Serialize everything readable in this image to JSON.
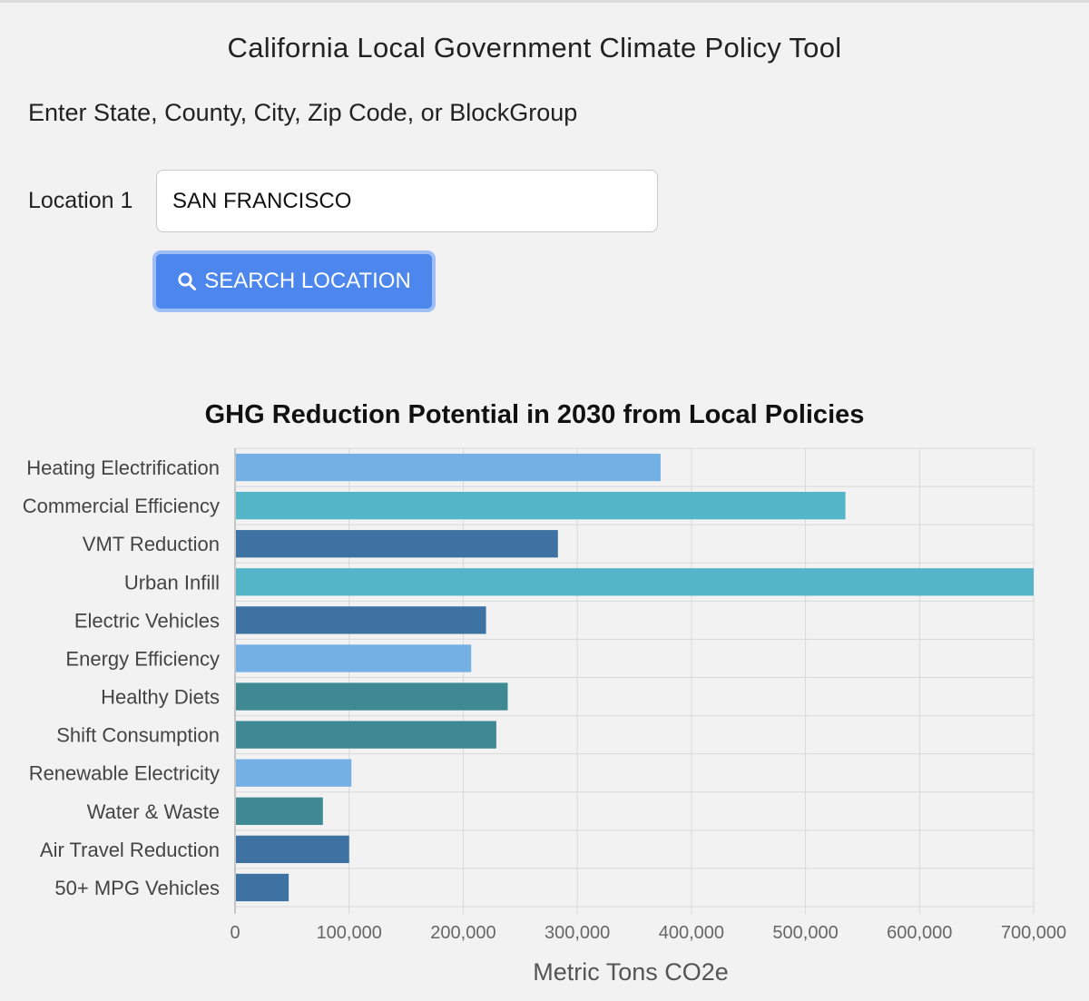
{
  "app": {
    "title": "California Local Government Climate Policy Tool"
  },
  "search": {
    "prompt": "Enter State, County, City, Zip Code, or BlockGroup",
    "location_label": "Location 1",
    "location_value": "SAN FRANCISCO",
    "button_label": "SEARCH LOCATION",
    "button_icon": "search-icon"
  },
  "colors": {
    "button": "#4d87ee",
    "light_blue": "#74b0e3",
    "cyan": "#55b5c8",
    "dark_blue": "#3e72a2",
    "teal": "#3e8994"
  },
  "chart_data": {
    "type": "bar",
    "orientation": "horizontal",
    "title": "GHG Reduction Potential in 2030 from Local Policies",
    "xlabel": "Metric Tons CO2e",
    "ylabel": "",
    "xlim": [
      0,
      700000
    ],
    "xticks": [
      0,
      100000,
      200000,
      300000,
      400000,
      500000,
      600000,
      700000
    ],
    "xtick_labels": [
      "0",
      "100,000",
      "200,000",
      "300,000",
      "400,000",
      "500,000",
      "600,000",
      "700,000"
    ],
    "grid": true,
    "categories": [
      "Heating Electrification",
      "Commercial Efficiency",
      "VMT Reduction",
      "Urban Infill",
      "Electric Vehicles",
      "Energy Efficiency",
      "Healthy Diets",
      "Shift Consumption",
      "Renewable Electricity",
      "Water & Waste",
      "Air Travel Reduction",
      "50+ MPG Vehicles"
    ],
    "values": [
      373000,
      535000,
      283000,
      700000,
      220000,
      207000,
      239000,
      229000,
      102000,
      77000,
      100000,
      47000
    ],
    "bar_colors": [
      "#74b0e3",
      "#55b5c8",
      "#3e72a2",
      "#55b5c8",
      "#3e72a2",
      "#74b0e3",
      "#3e8994",
      "#3e8994",
      "#74b0e3",
      "#3e8994",
      "#3e72a2",
      "#3e72a2"
    ]
  }
}
